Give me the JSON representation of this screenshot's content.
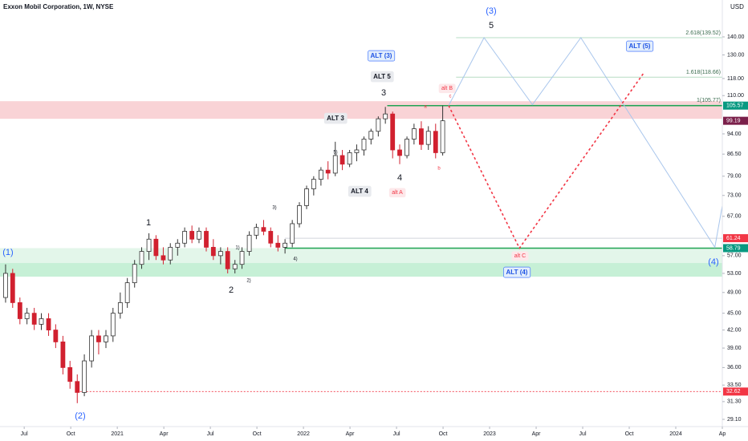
{
  "chart_data": {
    "type": "candlestick",
    "title": "Exxon Mobil Corporation, 1W, NYSE",
    "currency": "USD",
    "log_scale": true,
    "xlim": [
      2020.37,
      2024.25
    ],
    "ylim": [
      28.25,
      162.9
    ],
    "xticks": [
      {
        "value": 2020.5,
        "label": "Jul"
      },
      {
        "value": 2020.75,
        "label": "Oct"
      },
      {
        "value": 2021,
        "label": "2021"
      },
      {
        "value": 2021.25,
        "label": "Apr"
      },
      {
        "value": 2021.5,
        "label": "Jul"
      },
      {
        "value": 2021.75,
        "label": "Oct"
      },
      {
        "value": 2022,
        "label": "2022"
      },
      {
        "value": 2022.25,
        "label": "Apr"
      },
      {
        "value": 2022.5,
        "label": "Jul"
      },
      {
        "value": 2022.75,
        "label": "Oct"
      },
      {
        "value": 2023,
        "label": "2023"
      },
      {
        "value": 2023.25,
        "label": "Apr"
      },
      {
        "value": 2023.5,
        "label": "Jul"
      },
      {
        "value": 2023.75,
        "label": "Oct"
      },
      {
        "value": 2024,
        "label": "2024"
      },
      {
        "value": 2024.25,
        "label": "Ap"
      }
    ],
    "yticks": [
      {
        "value": 140,
        "label": "140.00"
      },
      {
        "value": 130,
        "label": "130.00"
      },
      {
        "value": 118,
        "label": "118.00"
      },
      {
        "value": 110,
        "label": "110.00"
      },
      {
        "value": 94,
        "label": "94.00"
      },
      {
        "value": 86.5,
        "label": "86.50"
      },
      {
        "value": 79,
        "label": "79.00"
      },
      {
        "value": 73,
        "label": "73.00"
      },
      {
        "value": 67,
        "label": "67.00"
      },
      {
        "value": 57,
        "label": "57.00"
      },
      {
        "value": 53,
        "label": "53.00"
      },
      {
        "value": 49,
        "label": "49.00"
      },
      {
        "value": 45,
        "label": "45.00"
      },
      {
        "value": 42,
        "label": "42.00"
      },
      {
        "value": 39,
        "label": "39.00"
      },
      {
        "value": 36,
        "label": "36.00"
      },
      {
        "value": 33.5,
        "label": "33.50"
      },
      {
        "value": 31.3,
        "label": "31.30"
      },
      {
        "value": 29.1,
        "label": "29.10"
      }
    ],
    "price_tags": [
      {
        "value": 105.57,
        "label": "105.57",
        "color": "#089981"
      },
      {
        "value": 99.19,
        "label": "99.19",
        "color": "#7a1f4a"
      },
      {
        "value": 61.24,
        "label": "61.24",
        "color": "#f23645"
      },
      {
        "value": 58.79,
        "label": "58.79",
        "color": "#089981"
      },
      {
        "value": 32.62,
        "label": "32.62",
        "color": "#f23645"
      }
    ],
    "up_color": "#ffffff",
    "down_color": "#d1202f",
    "x": [
      2020.4,
      2020.438,
      2020.477,
      2020.515,
      2020.554,
      2020.592,
      2020.631,
      2020.669,
      2020.708,
      2020.746,
      2020.785,
      2020.823,
      2020.862,
      2020.9,
      2020.939,
      2020.977,
      2021.016,
      2021.054,
      2021.093,
      2021.131,
      2021.17,
      2021.208,
      2021.247,
      2021.285,
      2021.324,
      2021.362,
      2021.401,
      2021.439,
      2021.478,
      2021.516,
      2021.555,
      2021.593,
      2021.632,
      2021.67,
      2021.709,
      2021.747,
      2021.786,
      2021.824,
      2021.863,
      2021.901,
      2021.94,
      2021.978,
      2022.017,
      2022.055,
      2022.094,
      2022.132,
      2022.171,
      2022.209,
      2022.248,
      2022.286,
      2022.325,
      2022.363,
      2022.402,
      2022.44,
      2022.479,
      2022.517,
      2022.556,
      2022.594,
      2022.633,
      2022.671,
      2022.71,
      2022.748
    ],
    "open": [
      48,
      53,
      47,
      44,
      45,
      43,
      44,
      42,
      40,
      36,
      34,
      32.5,
      37,
      41,
      40,
      41,
      45,
      47,
      51,
      55,
      58,
      61,
      57,
      56,
      59,
      60,
      63,
      61,
      63,
      59,
      57,
      58,
      54,
      55,
      58,
      62,
      64,
      63,
      60,
      59,
      60,
      65,
      70,
      75,
      78,
      81,
      80,
      86,
      83,
      87,
      88,
      92,
      95,
      100,
      102,
      88,
      86,
      92,
      96,
      90,
      95,
      87
    ],
    "high": [
      55,
      54,
      48,
      46,
      46,
      45,
      45,
      43,
      41,
      37,
      35,
      38,
      42,
      42,
      42,
      46,
      49,
      52,
      56,
      59,
      62.5,
      62,
      59,
      60,
      61,
      64,
      64.5,
      64,
      64,
      61,
      59,
      59,
      56,
      59,
      63,
      65,
      66,
      64,
      62,
      61,
      66,
      71,
      76,
      79,
      82,
      84,
      91,
      88,
      88,
      90,
      93,
      96,
      101,
      105,
      103,
      90,
      93,
      98,
      99,
      97,
      98,
      105.57
    ],
    "low": [
      47,
      46,
      43,
      43,
      42,
      42,
      41,
      39,
      35,
      33,
      31.1,
      32,
      36,
      38,
      39,
      40,
      44,
      46,
      50,
      54,
      56,
      56,
      55,
      55,
      57,
      59,
      60,
      60,
      58,
      56,
      55,
      53,
      53,
      54,
      57,
      61,
      62,
      59,
      58,
      57.5,
      59,
      64,
      69,
      73,
      76,
      78,
      79,
      81,
      82,
      84,
      86,
      90,
      93,
      98,
      85,
      83,
      85,
      90,
      88,
      88,
      85,
      86
    ],
    "close": [
      53,
      47,
      44,
      45,
      43,
      44,
      42,
      40,
      36,
      34,
      32.5,
      37,
      41,
      40,
      41,
      45,
      47,
      51,
      55,
      58,
      61,
      57,
      56,
      59,
      60,
      63,
      61,
      63,
      59,
      57,
      58,
      54,
      55,
      58,
      62,
      64,
      63,
      60,
      59,
      60,
      65,
      70,
      75,
      78,
      81,
      80,
      86,
      83,
      87,
      88,
      92,
      95,
      100,
      102,
      88,
      86,
      92,
      96,
      90,
      95,
      87,
      99.19
    ],
    "zones": [
      {
        "from": 100,
        "to": 107.5,
        "color": "#f9d3d6"
      },
      {
        "from": 55.3,
        "to": 58.79,
        "color": "#e3f6ea"
      },
      {
        "from": 52.3,
        "to": 55.3,
        "color": "#c6f0d6"
      }
    ],
    "fib_levels": [
      {
        "value": 139.52,
        "label": "2.618(139.52)"
      },
      {
        "value": 118.66,
        "label": "1.618(118.66)"
      },
      {
        "value": 105.77,
        "label": "1(105.77)"
      }
    ],
    "projections": [
      {
        "color": "#a9c6ec",
        "x": [
          2022.78,
          2022.97,
          2023.23,
          2023.49,
          2024.21,
          2024.25
        ],
        "y": [
          105.57,
          139.52,
          106,
          139.52,
          59,
          70
        ]
      },
      {
        "color": "#f23645",
        "x": [
          2022.78,
          2023.16,
          2023.83
        ],
        "y": [
          105.57,
          58.79,
          121
        ]
      }
    ],
    "annotations": [
      "(1)",
      "(2)",
      "1",
      "2",
      "1)",
      "2)",
      "3)",
      "4)",
      "5)",
      "ALT 3",
      "3",
      "ALT 5",
      "ALT (3)",
      "4",
      "ALT 4",
      "alt A",
      "a",
      "b",
      "c",
      "alt B",
      "(3)",
      "5",
      "ALT (5)",
      "alt C",
      "ALT (4)",
      "(4)"
    ]
  }
}
